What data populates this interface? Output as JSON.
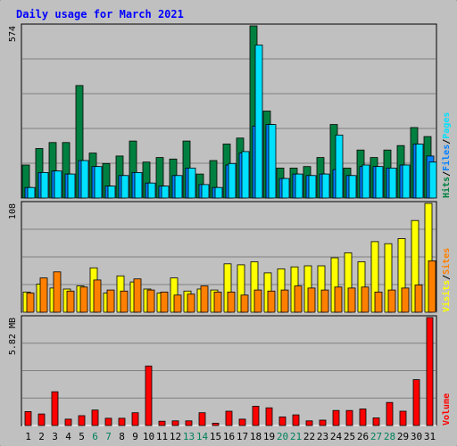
{
  "title": "Daily usage for March 2021",
  "colors": {
    "page_bg": "#c0c0c0",
    "outer_bg": "#ffffff",
    "grid": "#808080",
    "title": "#0000ff",
    "hits": "#008040",
    "files": "#0080ff",
    "pages": "#00e0ff",
    "visits": "#ffff00",
    "sites": "#ff8000",
    "kbytes": "#ff0000",
    "weekend_label": "#00805c",
    "weekday_label": "#000000"
  },
  "panels": {
    "top": {
      "ylabel_max": "574",
      "legend": [
        {
          "text": "Hits",
          "color": "#008040"
        },
        {
          "text": "/",
          "color": "#000000"
        },
        {
          "text": "Files",
          "color": "#0080ff"
        },
        {
          "text": "/",
          "color": "#000000"
        },
        {
          "text": "Pages",
          "color": "#00e0ff"
        }
      ]
    },
    "middle": {
      "ylabel_max": "108",
      "legend": [
        {
          "text": "Visits",
          "color": "#ffff00"
        },
        {
          "text": "/",
          "color": "#000000"
        },
        {
          "text": "Sites",
          "color": "#ff8000"
        }
      ]
    },
    "bottom": {
      "ylabel_max": "5.82 MB",
      "legend": [
        {
          "text": "Volume",
          "color": "#ff0000"
        }
      ]
    }
  },
  "chart_data": [
    {
      "type": "bar",
      "title": "Daily usage for March 2021",
      "ylabel": "574",
      "ylim": [
        0,
        574
      ],
      "grid": true,
      "categories": [
        "1",
        "2",
        "3",
        "4",
        "5",
        "6",
        "7",
        "8",
        "9",
        "10",
        "11",
        "12",
        "13",
        "14",
        "15",
        "16",
        "17",
        "18",
        "19",
        "20",
        "21",
        "22",
        "23",
        "24",
        "25",
        "26",
        "27",
        "28",
        "29",
        "30",
        "31"
      ],
      "weekend_days": [
        6,
        7,
        13,
        14,
        20,
        21,
        27,
        28
      ],
      "series": [
        {
          "name": "Hits",
          "values": [
            110,
            165,
            185,
            185,
            375,
            150,
            115,
            140,
            190,
            120,
            135,
            130,
            190,
            80,
            125,
            180,
            200,
            574,
            290,
            100,
            100,
            105,
            135,
            245,
            100,
            160,
            135,
            160,
            175,
            235,
            205
          ]
        },
        {
          "name": "Files",
          "values": [
            35,
            85,
            90,
            80,
            125,
            105,
            40,
            75,
            85,
            50,
            40,
            75,
            100,
            45,
            35,
            110,
            150,
            240,
            245,
            65,
            80,
            75,
            80,
            95,
            75,
            105,
            105,
            100,
            110,
            180,
            140
          ]
        },
        {
          "name": "Pages",
          "values": [
            35,
            85,
            90,
            80,
            125,
            105,
            40,
            75,
            85,
            50,
            40,
            75,
            100,
            45,
            35,
            115,
            155,
            510,
            245,
            65,
            80,
            75,
            80,
            210,
            75,
            110,
            105,
            100,
            110,
            180,
            120
          ]
        }
      ]
    },
    {
      "type": "bar",
      "ylabel": "108",
      "ylim": [
        0,
        108
      ],
      "grid": true,
      "categories": [
        "1",
        "2",
        "3",
        "4",
        "5",
        "6",
        "7",
        "8",
        "9",
        "10",
        "11",
        "12",
        "13",
        "14",
        "15",
        "16",
        "17",
        "18",
        "19",
        "20",
        "21",
        "22",
        "23",
        "24",
        "25",
        "26",
        "27",
        "28",
        "29",
        "30",
        "31"
      ],
      "series": [
        {
          "name": "Visits",
          "values": [
            20,
            28,
            24,
            23,
            26,
            44,
            19,
            36,
            30,
            23,
            19,
            34,
            21,
            23,
            22,
            48,
            47,
            50,
            39,
            43,
            45,
            46,
            46,
            54,
            59,
            50,
            70,
            68,
            73,
            91,
            108
          ]
        },
        {
          "name": "Sites",
          "values": [
            19,
            34,
            40,
            21,
            25,
            32,
            22,
            21,
            33,
            22,
            20,
            17,
            18,
            26,
            20,
            20,
            17,
            22,
            21,
            22,
            26,
            24,
            22,
            25,
            24,
            25,
            20,
            22,
            24,
            27,
            51
          ]
        }
      ]
    },
    {
      "type": "bar",
      "ylabel": "5.82 MB",
      "ylim": [
        0,
        5.82
      ],
      "grid": true,
      "categories": [
        "1",
        "2",
        "3",
        "4",
        "5",
        "6",
        "7",
        "8",
        "9",
        "10",
        "11",
        "12",
        "13",
        "14",
        "15",
        "16",
        "17",
        "18",
        "19",
        "20",
        "21",
        "22",
        "23",
        "24",
        "25",
        "26",
        "27",
        "28",
        "29",
        "30",
        "31"
      ],
      "series": [
        {
          "name": "Volume",
          "values": [
            0.75,
            0.62,
            1.82,
            0.34,
            0.53,
            0.83,
            0.39,
            0.39,
            0.69,
            3.21,
            0.23,
            0.25,
            0.25,
            0.69,
            0.12,
            0.77,
            0.34,
            1.04,
            0.95,
            0.46,
            0.57,
            0.25,
            0.29,
            0.81,
            0.81,
            0.89,
            0.41,
            1.24,
            0.77,
            2.47,
            5.82
          ]
        }
      ]
    }
  ]
}
